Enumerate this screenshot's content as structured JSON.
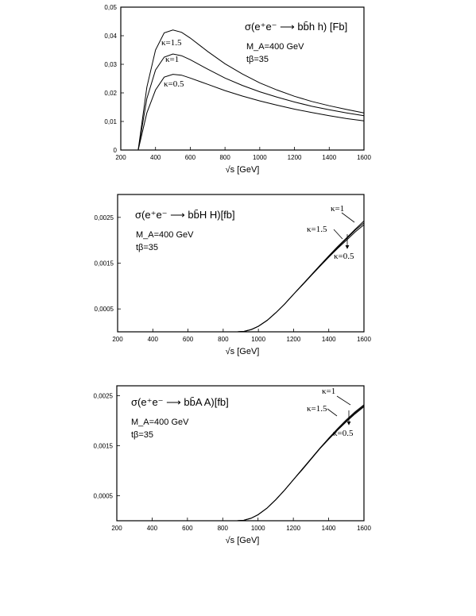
{
  "chart_data": [
    {
      "type": "line",
      "xlabel": "√s [GeV]",
      "xlim": [
        200,
        1600
      ],
      "ylim": [
        0,
        0.05
      ],
      "x_ticks": [
        "200",
        "400",
        "600",
        "800",
        "1000",
        "1200",
        "1400",
        "1600"
      ],
      "y_ticks": [
        "0",
        "0,01",
        "0,02",
        "0,03",
        "0,04",
        "0,05"
      ],
      "title": "σ(e⁺e⁻ ⟶ bb̄h h) [Fb]",
      "annotations": [
        "M_A=400 GeV",
        "tβ=35"
      ],
      "series": [
        {
          "name": "κ=1.5",
          "x": [
            300,
            350,
            400,
            450,
            500,
            550,
            600,
            700,
            800,
            900,
            1000,
            1100,
            1200,
            1300,
            1400,
            1500,
            1600
          ],
          "y": [
            0,
            0.022,
            0.035,
            0.041,
            0.042,
            0.0412,
            0.0392,
            0.0345,
            0.0302,
            0.0266,
            0.0235,
            0.021,
            0.0188,
            0.017,
            0.0155,
            0.0142,
            0.013
          ]
        },
        {
          "name": "κ=1",
          "x": [
            300,
            350,
            400,
            450,
            500,
            550,
            600,
            700,
            800,
            900,
            1000,
            1100,
            1200,
            1300,
            1400,
            1500,
            1600
          ],
          "y": [
            0,
            0.018,
            0.028,
            0.0325,
            0.0336,
            0.033,
            0.0316,
            0.0283,
            0.0252,
            0.0226,
            0.0204,
            0.0185,
            0.0168,
            0.0153,
            0.0141,
            0.013,
            0.012
          ]
        },
        {
          "name": "κ=0.5",
          "x": [
            300,
            350,
            400,
            450,
            500,
            550,
            600,
            700,
            800,
            900,
            1000,
            1100,
            1200,
            1300,
            1400,
            1500,
            1600
          ],
          "y": [
            0,
            0.013,
            0.021,
            0.0255,
            0.0265,
            0.0262,
            0.0252,
            0.023,
            0.0208,
            0.0189,
            0.0172,
            0.0157,
            0.0143,
            0.0131,
            0.012,
            0.011,
            0.0102
          ]
        }
      ]
    },
    {
      "type": "line",
      "xlabel": "√s [GeV]",
      "xlim": [
        200,
        1600
      ],
      "ylim": [
        0,
        0.003
      ],
      "x_ticks": [
        "200",
        "400",
        "600",
        "800",
        "1000",
        "1200",
        "1400",
        "1600"
      ],
      "y_ticks": [
        "0,0005",
        "0,0015",
        "0,0025"
      ],
      "title": "σ(e⁺e⁻ ⟶ bb̄H H)[fb]",
      "annotations": [
        "M_A=400 GeV",
        "tβ=35"
      ],
      "series": [
        {
          "name": "κ=1.5",
          "x": [
            880,
            920,
            960,
            1000,
            1050,
            1100,
            1150,
            1200,
            1250,
            1300,
            1350,
            1400,
            1450,
            1500,
            1550,
            1600
          ],
          "y": [
            0,
            1e-05,
            5e-05,
            0.00012,
            0.00025,
            0.00042,
            0.00061,
            0.00082,
            0.00103,
            0.00124,
            0.00145,
            0.00165,
            0.00184,
            0.00203,
            0.00222,
            0.00238
          ]
        },
        {
          "name": "κ=1",
          "x": [
            880,
            920,
            960,
            1000,
            1050,
            1100,
            1150,
            1200,
            1250,
            1300,
            1350,
            1400,
            1450,
            1500,
            1550,
            1600
          ],
          "y": [
            0,
            1e-05,
            5e-05,
            0.00012,
            0.00025,
            0.00042,
            0.00061,
            0.00082,
            0.00103,
            0.00124,
            0.00145,
            0.00166,
            0.00186,
            0.00205,
            0.00224,
            0.00242
          ]
        },
        {
          "name": "κ=0.5",
          "x": [
            880,
            920,
            960,
            1000,
            1050,
            1100,
            1150,
            1200,
            1250,
            1300,
            1350,
            1400,
            1450,
            1500,
            1550,
            1600
          ],
          "y": [
            0,
            1e-05,
            5e-05,
            0.00012,
            0.00025,
            0.00042,
            0.00061,
            0.00082,
            0.00102,
            0.00123,
            0.00143,
            0.00163,
            0.00182,
            0.002,
            0.00218,
            0.00234
          ]
        }
      ]
    },
    {
      "type": "line",
      "xlabel": "√s [GeV]",
      "xlim": [
        200,
        1600
      ],
      "ylim": [
        0,
        0.0027
      ],
      "x_ticks": [
        "200",
        "400",
        "600",
        "800",
        "1000",
        "1200",
        "1400",
        "1600"
      ],
      "y_ticks": [
        "0,0005",
        "0,0015",
        "0,0025"
      ],
      "title": "σ(e⁺e⁻ ⟶ bb̄A A)[fb]",
      "annotations": [
        "M_A=400 GeV",
        "tβ=35"
      ],
      "series": [
        {
          "name": "κ=1.5",
          "x": [
            880,
            920,
            960,
            1000,
            1050,
            1100,
            1150,
            1200,
            1250,
            1300,
            1350,
            1400,
            1450,
            1500,
            1550,
            1600
          ],
          "y": [
            0,
            1e-05,
            5e-05,
            0.00012,
            0.00025,
            0.00042,
            0.00061,
            0.00082,
            0.00103,
            0.00124,
            0.00145,
            0.00164,
            0.00183,
            0.002,
            0.00216,
            0.0023
          ]
        },
        {
          "name": "κ=1",
          "x": [
            880,
            920,
            960,
            1000,
            1050,
            1100,
            1150,
            1200,
            1250,
            1300,
            1350,
            1400,
            1450,
            1500,
            1550,
            1600
          ],
          "y": [
            0,
            1e-05,
            5e-05,
            0.00012,
            0.00025,
            0.00042,
            0.00061,
            0.00082,
            0.00103,
            0.00124,
            0.00145,
            0.00165,
            0.00184,
            0.00202,
            0.00218,
            0.00232
          ]
        },
        {
          "name": "κ=0.5",
          "x": [
            880,
            920,
            960,
            1000,
            1050,
            1100,
            1150,
            1200,
            1250,
            1300,
            1350,
            1400,
            1450,
            1500,
            1550,
            1600
          ],
          "y": [
            0,
            1e-05,
            5e-05,
            0.00012,
            0.00025,
            0.00042,
            0.00061,
            0.00082,
            0.00102,
            0.00123,
            0.00144,
            0.00163,
            0.00181,
            0.00198,
            0.00214,
            0.00228
          ]
        }
      ]
    }
  ]
}
